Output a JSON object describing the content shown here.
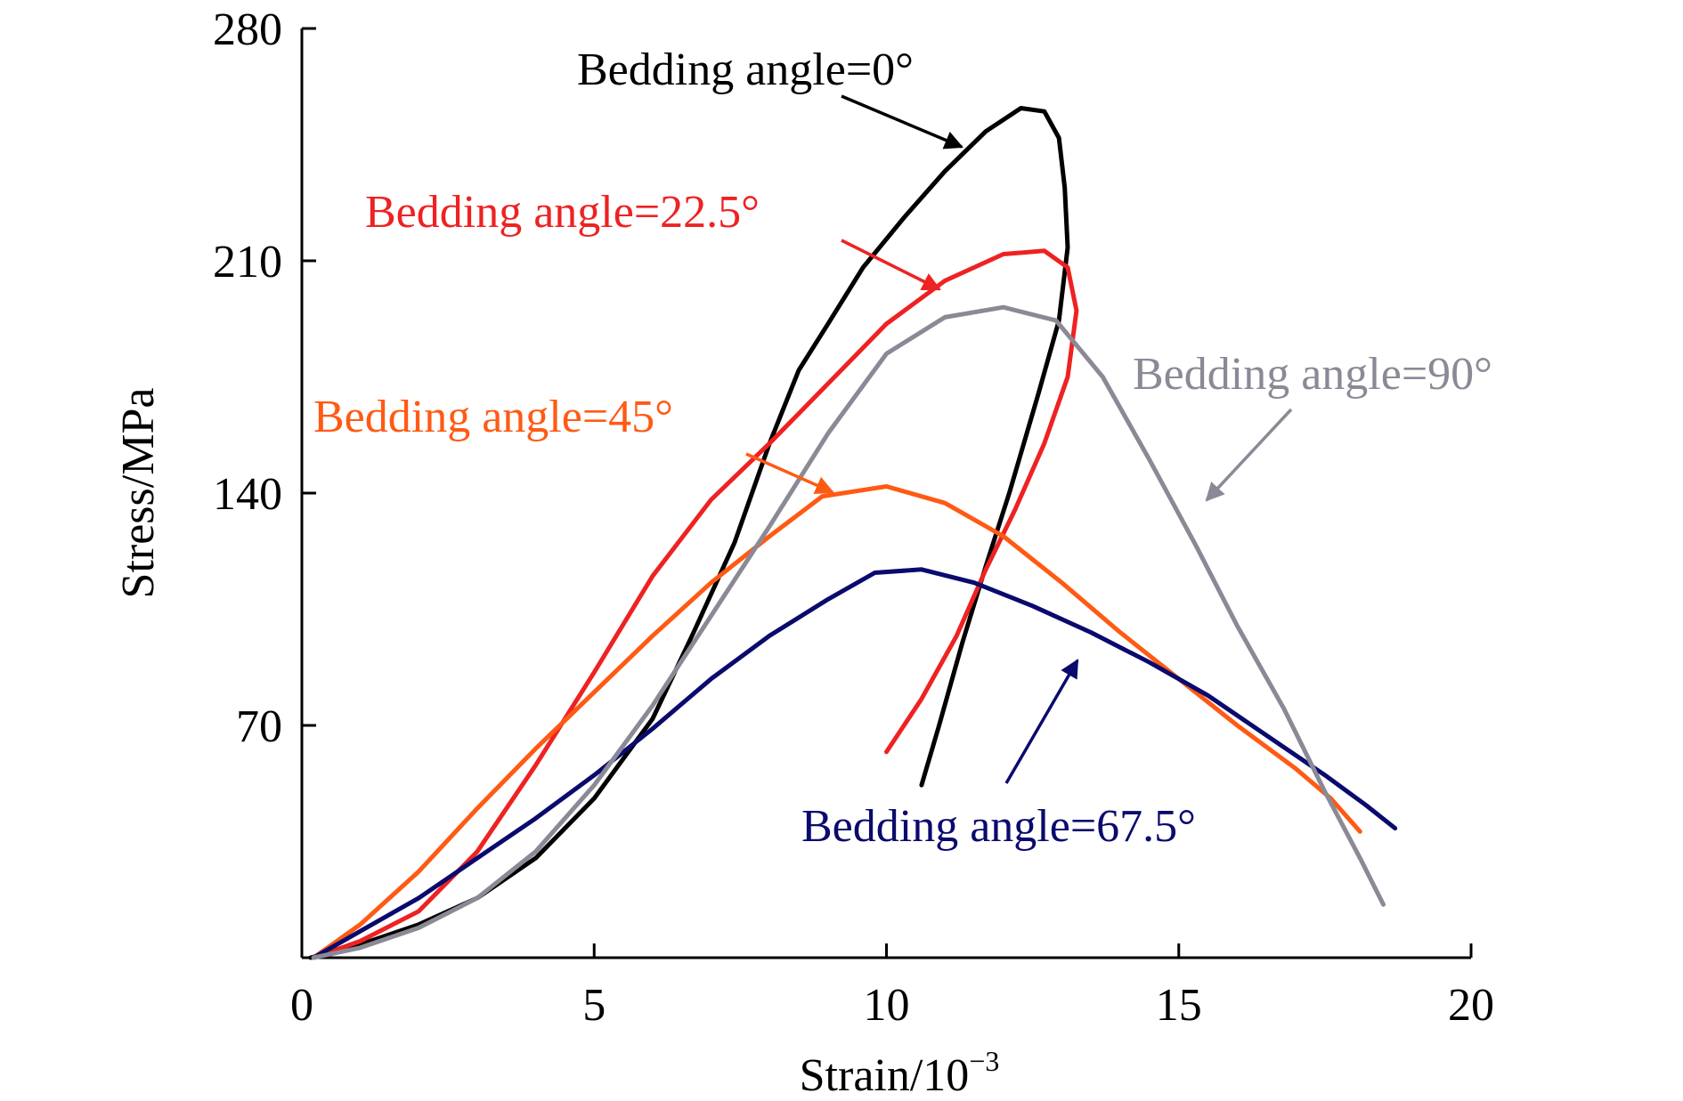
{
  "chart_data": {
    "type": "line",
    "xlabel": "Strain/10",
    "xlabel_exp": "−3",
    "ylabel": "Stress/MPa",
    "xlim": [
      0,
      20
    ],
    "ylim": [
      0,
      280
    ],
    "x_ticks": [
      0,
      5,
      10,
      15,
      20
    ],
    "y_ticks": [
      70,
      140,
      210,
      280
    ],
    "grid": false,
    "series": [
      {
        "name": "Bedding angle=0°",
        "color": "#000000",
        "points": [
          [
            0.15,
            0
          ],
          [
            1,
            4
          ],
          [
            2,
            10
          ],
          [
            3,
            18
          ],
          [
            4,
            30
          ],
          [
            5,
            48
          ],
          [
            6,
            72
          ],
          [
            6.7,
            98
          ],
          [
            7.4,
            125
          ],
          [
            8,
            155
          ],
          [
            8.5,
            177
          ],
          [
            9,
            191
          ],
          [
            9.6,
            208
          ],
          [
            10.3,
            223
          ],
          [
            11,
            237
          ],
          [
            11.7,
            249
          ],
          [
            12.3,
            256
          ],
          [
            12.7,
            255
          ],
          [
            12.95,
            247
          ],
          [
            13.05,
            232
          ],
          [
            13.1,
            214
          ],
          [
            12.95,
            192
          ],
          [
            12.6,
            170
          ],
          [
            12.1,
            140
          ],
          [
            11.7,
            118
          ],
          [
            11.3,
            95
          ],
          [
            10.9,
            70
          ],
          [
            10.6,
            52
          ]
        ]
      },
      {
        "name": "Bedding angle=22.5°",
        "color": "#ee2222",
        "points": [
          [
            0.2,
            0
          ],
          [
            1,
            5
          ],
          [
            2,
            14
          ],
          [
            3,
            32
          ],
          [
            4,
            58
          ],
          [
            5,
            86
          ],
          [
            6,
            115
          ],
          [
            7,
            138
          ],
          [
            8,
            155
          ],
          [
            9,
            173
          ],
          [
            10,
            191
          ],
          [
            11,
            204
          ],
          [
            12,
            212
          ],
          [
            12.7,
            213
          ],
          [
            13.1,
            208
          ],
          [
            13.25,
            195
          ],
          [
            13.1,
            175
          ],
          [
            12.7,
            155
          ],
          [
            12.2,
            135
          ],
          [
            11.7,
            117
          ],
          [
            11.2,
            97
          ],
          [
            10.6,
            78
          ],
          [
            10,
            62
          ]
        ]
      },
      {
        "name": "Bedding angle=45°",
        "color": "#ff5a14",
        "points": [
          [
            0.2,
            0
          ],
          [
            1,
            10
          ],
          [
            2,
            26
          ],
          [
            3,
            45
          ],
          [
            4,
            63
          ],
          [
            5,
            80
          ],
          [
            6,
            97
          ],
          [
            7,
            113
          ],
          [
            8,
            127
          ],
          [
            8.9,
            139
          ],
          [
            10,
            142
          ],
          [
            11,
            137
          ],
          [
            12,
            127
          ],
          [
            13,
            113
          ],
          [
            14,
            98
          ],
          [
            15,
            84
          ],
          [
            16,
            70
          ],
          [
            17,
            57
          ],
          [
            17.6,
            48
          ],
          [
            18.1,
            38
          ]
        ]
      },
      {
        "name": "Bedding angle=67.5°",
        "color": "#0a0a6e",
        "points": [
          [
            0.2,
            0
          ],
          [
            1,
            8
          ],
          [
            2,
            18
          ],
          [
            3,
            30
          ],
          [
            4,
            42
          ],
          [
            5,
            55
          ],
          [
            6,
            69
          ],
          [
            7,
            84
          ],
          [
            8,
            97
          ],
          [
            9,
            108
          ],
          [
            9.8,
            116
          ],
          [
            10.6,
            117
          ],
          [
            11.5,
            113
          ],
          [
            12.5,
            106
          ],
          [
            13.5,
            98
          ],
          [
            14.5,
            89
          ],
          [
            15.5,
            79
          ],
          [
            16.5,
            67
          ],
          [
            17.5,
            55
          ],
          [
            18.2,
            46
          ],
          [
            18.7,
            39
          ]
        ]
      },
      {
        "name": "Bedding angle=90°",
        "color": "#8a8a96",
        "points": [
          [
            0.2,
            0
          ],
          [
            1,
            3
          ],
          [
            2,
            9
          ],
          [
            3,
            18
          ],
          [
            4,
            32
          ],
          [
            5,
            52
          ],
          [
            6,
            76
          ],
          [
            7,
            103
          ],
          [
            8,
            130
          ],
          [
            9,
            158
          ],
          [
            10,
            182
          ],
          [
            11,
            193
          ],
          [
            12,
            196
          ],
          [
            12.9,
            192
          ],
          [
            13.7,
            175
          ],
          [
            14.5,
            150
          ],
          [
            15.3,
            124
          ],
          [
            16,
            100
          ],
          [
            16.8,
            75
          ],
          [
            17.5,
            50
          ],
          [
            18.1,
            30
          ],
          [
            18.5,
            16
          ]
        ]
      }
    ],
    "annotations": [
      {
        "text": "Bedding angle=0°",
        "color": "#000000"
      },
      {
        "text": "Bedding angle=22.5°",
        "color": "#ee2222"
      },
      {
        "text": "Bedding angle=45°",
        "color": "#ff5a14"
      },
      {
        "text": "Bedding angle=67.5°",
        "color": "#0a0a6e"
      },
      {
        "text": "Bedding angle=90°",
        "color": "#8a8a96"
      }
    ]
  }
}
